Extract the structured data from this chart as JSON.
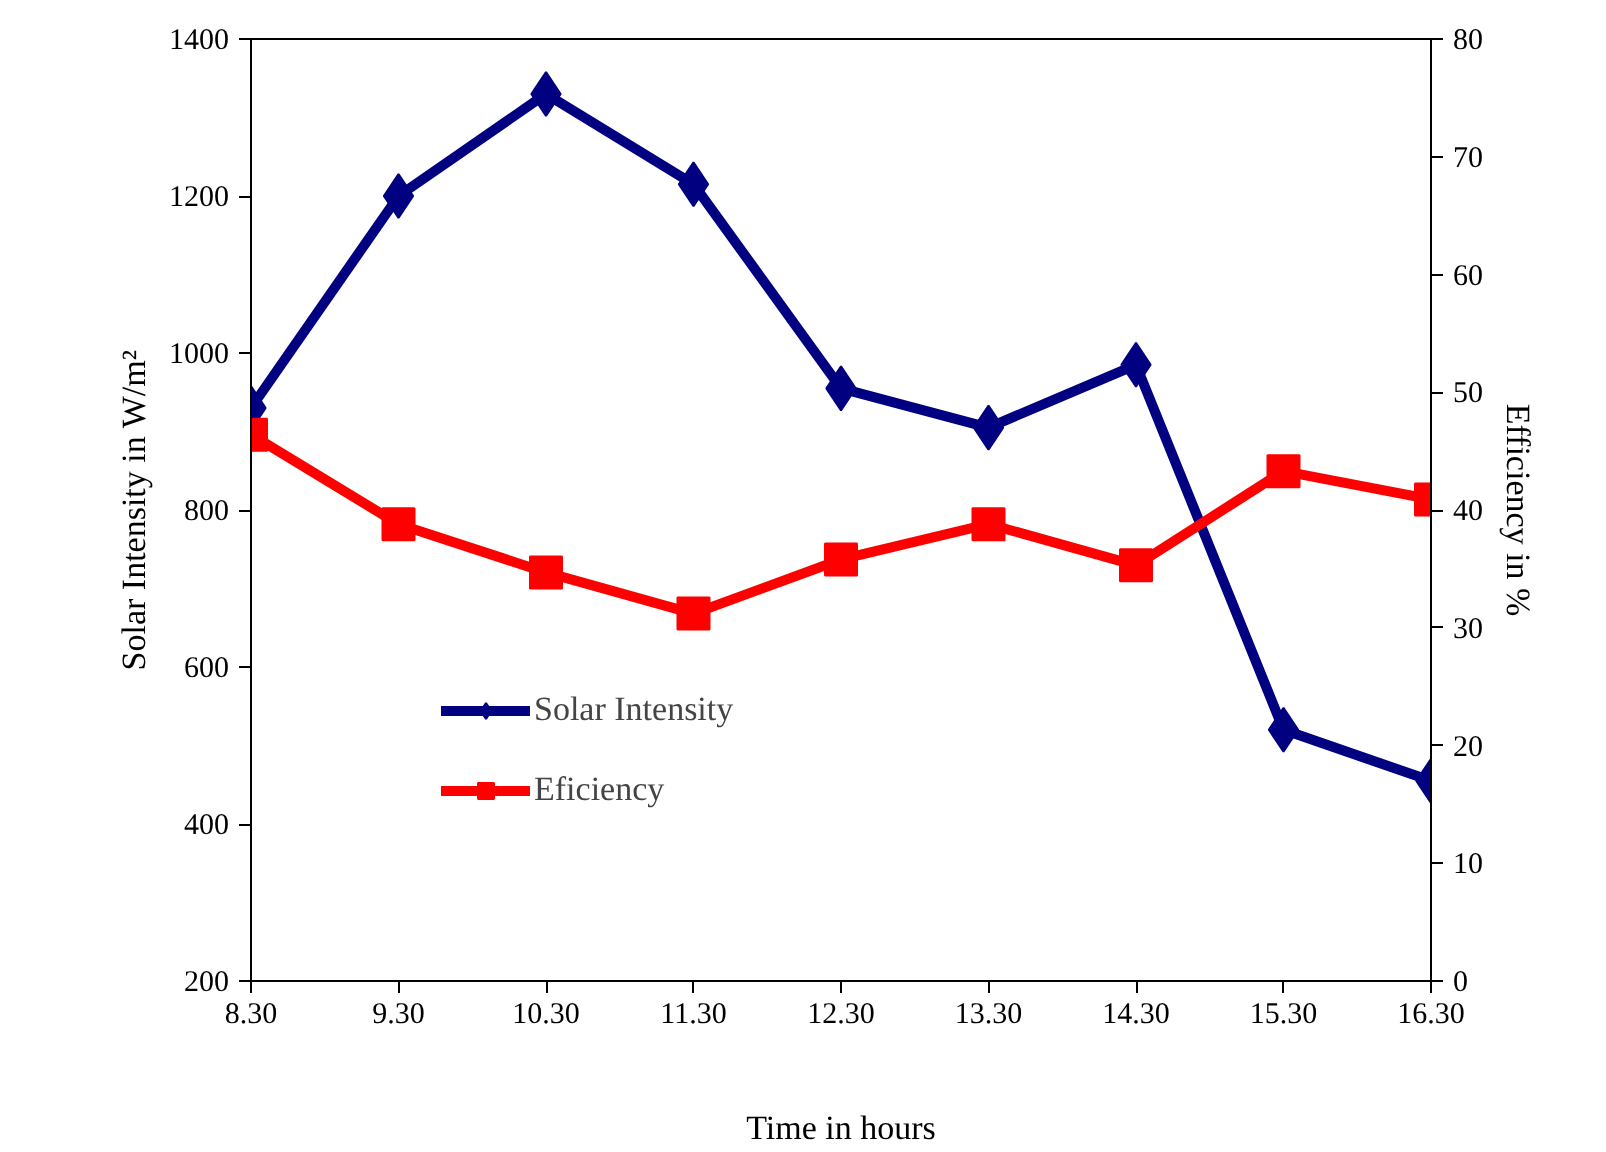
{
  "chart_data": {
    "type": "line",
    "xlabel": "Time in hours",
    "ylabel": "Solar Intensity in W/m²",
    "y2label": "Efficiency in %",
    "categories": [
      "8.30",
      "9.30",
      "10.30",
      "11.30",
      "12.30",
      "13.30",
      "14.30",
      "15.30",
      "16.30"
    ],
    "series": [
      {
        "name": "Solar Intensity",
        "color": "#000080",
        "marker": "diamond",
        "values": [
          930,
          1200,
          1330,
          1215,
          955,
          905,
          985,
          520,
          455
        ]
      },
      {
        "name": "Eficiency",
        "color": "#ff0000",
        "marker": "square",
        "axis": "y2",
        "values": [
          46.4,
          38.8,
          34.7,
          31.2,
          35.8,
          38.8,
          35.3,
          43.3,
          40.9
        ]
      }
    ],
    "ylim": [
      200,
      1400
    ],
    "yticks": [
      200,
      400,
      600,
      800,
      1000,
      1200,
      1400
    ],
    "y2lim": [
      0,
      80
    ],
    "y2ticks": [
      0,
      10,
      20,
      30,
      40,
      50,
      60,
      70,
      80
    ],
    "grid": false,
    "legend": "left"
  }
}
